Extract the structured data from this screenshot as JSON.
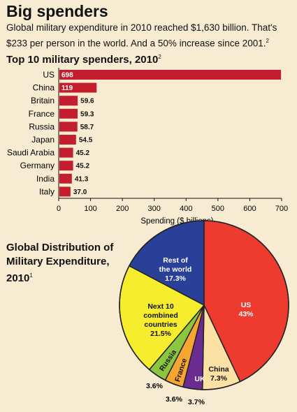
{
  "header": {
    "title": "Big spenders",
    "subtitle": "Global military expenditure in 2010 reached $1,630 billion. That's $233 per person in the world. And a 50% increase since 2001.",
    "subtitle_note": "2"
  },
  "colors": {
    "background": "#f7ecd1",
    "bar": "#c41e2e",
    "pie_us": "#ee3b2f",
    "pie_rest": "#2a3f98",
    "pie_next10": "#f5ed2d",
    "pie_russia": "#8cc63f",
    "pie_france": "#f7a531",
    "pie_uk": "#6a2c91",
    "pie_china": "#fbe2a4"
  },
  "chart_data": [
    {
      "type": "bar",
      "orientation": "horizontal",
      "title": "Top 10 military spenders, 2010",
      "title_note": "2",
      "categories": [
        "US",
        "China",
        "Britain",
        "France",
        "Russia",
        "Japan",
        "Saudi Arabia",
        "Germany",
        "India",
        "Italy"
      ],
      "values": [
        698,
        119,
        59.6,
        59.3,
        58.7,
        54.5,
        45.2,
        45.2,
        41.3,
        37.0
      ],
      "value_labels": [
        "698",
        "119",
        "59.6",
        "59.3",
        "58.7",
        "54.5",
        "45.2",
        "45.2",
        "41.3",
        "37.0"
      ],
      "xlabel": "Spending ($ billions)",
      "ylabel": "",
      "xlim": [
        0,
        700
      ],
      "xticks": [
        "0",
        "100",
        "200",
        "300",
        "400",
        "500",
        "600",
        "700"
      ],
      "grid": false
    },
    {
      "type": "pie",
      "title": "Global Distribution of Military Expenditure, 2010",
      "title_note": "1",
      "slices": [
        {
          "label": "US",
          "value_label": "43%",
          "value": 43,
          "color": "#ee3b2f"
        },
        {
          "label": "China",
          "value_label": "7.3%",
          "value": 7.3,
          "color": "#fbe2a4"
        },
        {
          "label": "UK",
          "value_label": "3.7%",
          "value": 3.7,
          "color": "#6a2c91"
        },
        {
          "label": "France",
          "value_label": "3.6%",
          "value": 3.6,
          "color": "#f7a531"
        },
        {
          "label": "Russia",
          "value_label": "3.6%",
          "value": 3.6,
          "color": "#8cc63f"
        },
        {
          "label": "Next 10 combined countries",
          "value_label": "21.5%",
          "value": 21.5,
          "color": "#f5ed2d"
        },
        {
          "label": "Rest of the world",
          "value_label": "17.3%",
          "value": 17.3,
          "color": "#2a3f98"
        }
      ]
    }
  ]
}
